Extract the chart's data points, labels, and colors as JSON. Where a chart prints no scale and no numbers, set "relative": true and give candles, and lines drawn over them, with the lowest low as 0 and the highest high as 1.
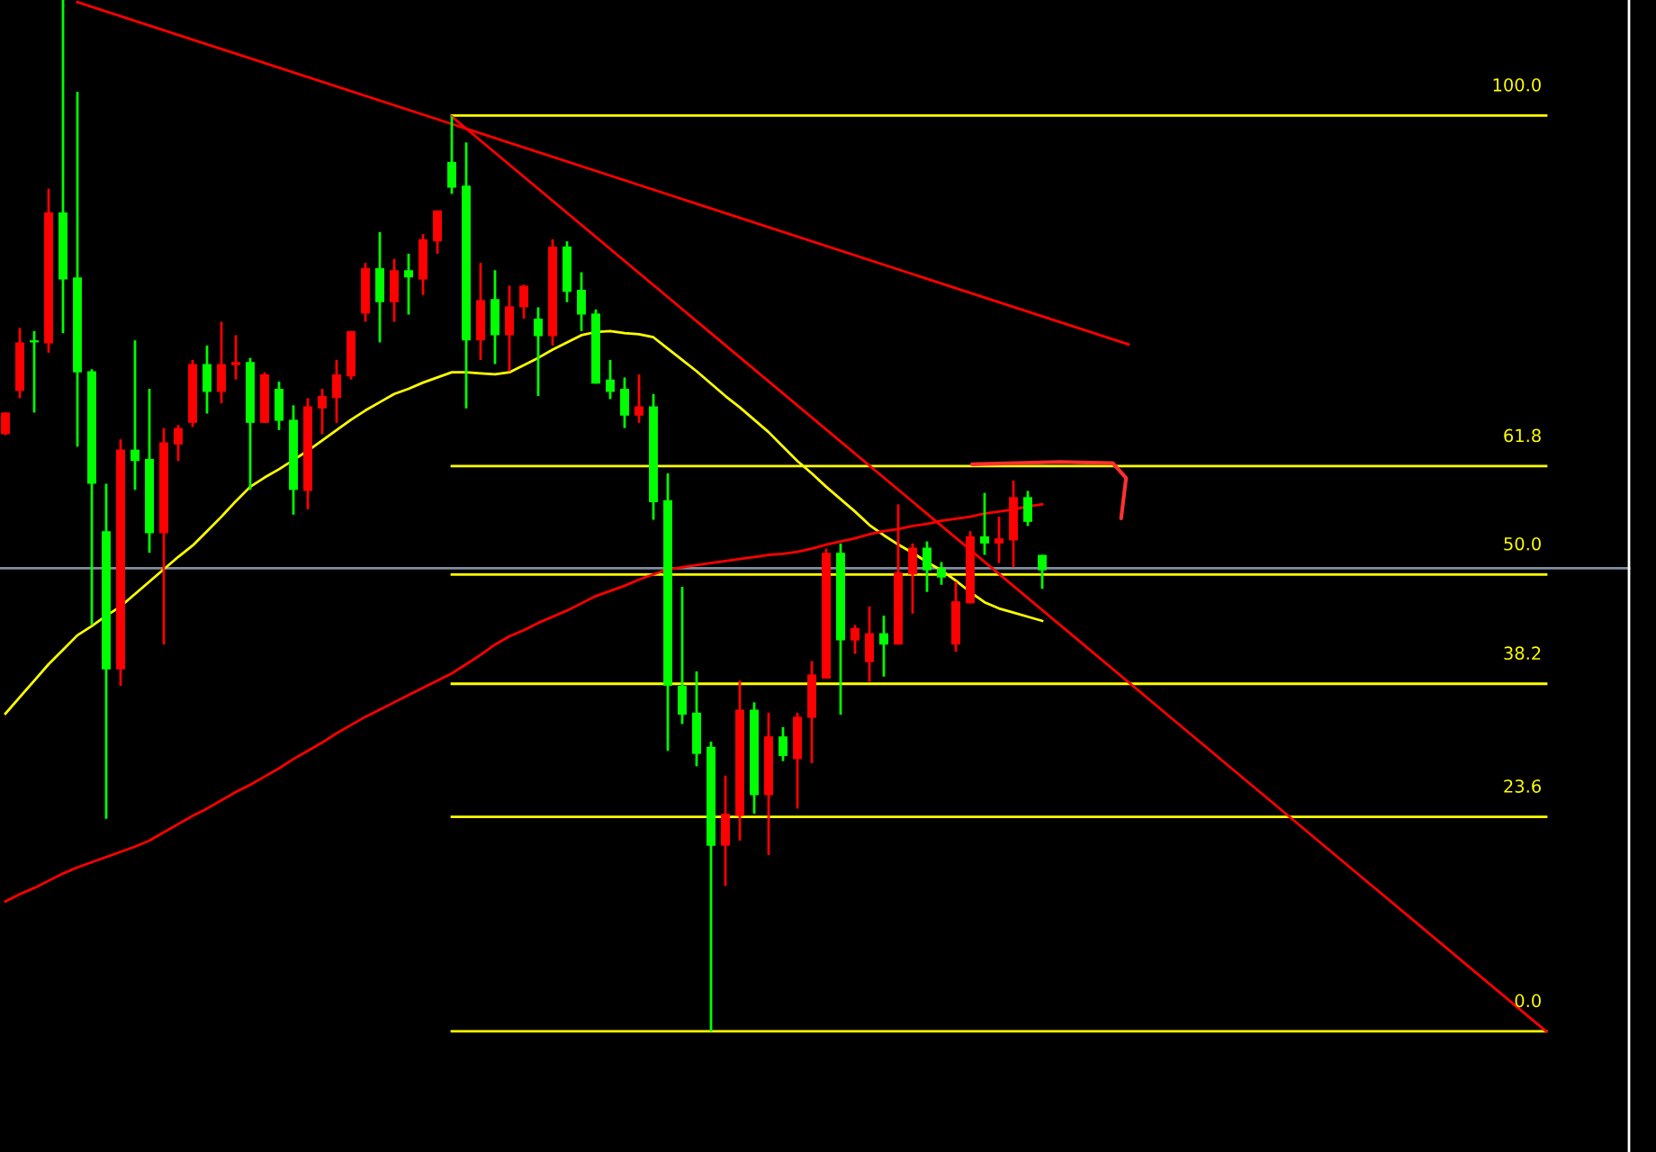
{
  "chart_data": {
    "type": "candlestick",
    "relative": true,
    "categories": [
      null,
      null,
      null,
      null,
      null,
      null,
      null,
      null,
      null,
      null,
      null,
      null,
      null,
      null,
      null,
      null,
      null,
      null,
      null,
      null,
      null,
      null,
      null,
      null,
      null,
      null,
      null,
      null,
      null,
      null,
      null,
      null,
      null,
      null,
      null,
      null,
      null,
      null,
      null,
      null,
      null,
      null,
      null,
      null,
      null,
      null,
      null,
      null,
      null,
      null,
      null,
      null,
      null,
      null,
      null,
      null,
      null,
      null,
      null,
      null,
      null,
      null,
      null,
      null,
      null,
      null,
      null,
      null,
      null,
      null,
      null,
      null,
      null,
      null,
      null,
      null,
      null,
      null,
      null,
      null,
      null,
      null,
      null,
      null,
      null,
      null,
      null,
      null,
      null,
      null,
      null,
      null,
      null,
      null,
      null,
      null,
      null,
      null,
      null,
      null,
      null,
      null,
      null,
      null,
      null,
      null,
      null,
      null
    ],
    "ohlc": [
      [
        0.579,
        0.6,
        0.578,
        0.6
      ],
      [
        0.621,
        0.682,
        0.614,
        0.668
      ],
      [
        0.668,
        0.679,
        0.6,
        0.668
      ],
      [
        0.667,
        0.817,
        0.658,
        0.794
      ],
      [
        0.794,
        1.0,
        0.677,
        0.729
      ],
      [
        0.731,
        0.911,
        0.567,
        0.639
      ],
      [
        0.64,
        0.642,
        0.394,
        0.531
      ],
      [
        0.485,
        0.531,
        0.206,
        0.351
      ],
      [
        0.351,
        0.574,
        0.335,
        0.564
      ],
      [
        0.564,
        0.67,
        0.525,
        0.553
      ],
      [
        0.555,
        0.623,
        0.464,
        0.483
      ],
      [
        0.483,
        0.585,
        0.375,
        0.571
      ],
      [
        0.569,
        0.588,
        0.553,
        0.585
      ],
      [
        0.59,
        0.651,
        0.586,
        0.647
      ],
      [
        0.647,
        0.665,
        0.599,
        0.62
      ],
      [
        0.62,
        0.688,
        0.609,
        0.647
      ],
      [
        0.646,
        0.675,
        0.632,
        0.649
      ],
      [
        0.649,
        0.653,
        0.525,
        0.59
      ],
      [
        0.59,
        0.639,
        0.59,
        0.637
      ],
      [
        0.623,
        0.63,
        0.583,
        0.592
      ],
      [
        0.593,
        0.607,
        0.501,
        0.525
      ],
      [
        0.524,
        0.614,
        0.506,
        0.606
      ],
      [
        0.604,
        0.623,
        0.579,
        0.616
      ],
      [
        0.614,
        0.651,
        0.59,
        0.637
      ],
      [
        0.635,
        0.679,
        0.632,
        0.679
      ],
      [
        0.696,
        0.745,
        0.688,
        0.74
      ],
      [
        0.74,
        0.775,
        0.668,
        0.707
      ],
      [
        0.707,
        0.749,
        0.688,
        0.738
      ],
      [
        0.738,
        0.754,
        0.695,
        0.731
      ],
      [
        0.729,
        0.773,
        0.714,
        0.768
      ],
      [
        0.766,
        0.796,
        0.754,
        0.796
      ],
      [
        0.843,
        0.887,
        0.812,
        0.818
      ],
      [
        0.82,
        0.862,
        0.604,
        0.67
      ],
      [
        0.67,
        0.745,
        0.651,
        0.709
      ],
      [
        0.71,
        0.738,
        0.647,
        0.675
      ],
      [
        0.675,
        0.723,
        0.64,
        0.703
      ],
      [
        0.702,
        0.724,
        0.691,
        0.723
      ],
      [
        0.691,
        0.702,
        0.616,
        0.674
      ],
      [
        0.674,
        0.768,
        0.665,
        0.761
      ],
      [
        0.761,
        0.766,
        0.707,
        0.717
      ],
      [
        0.719,
        0.736,
        0.679,
        0.695
      ],
      [
        0.696,
        0.7,
        0.628,
        0.628
      ],
      [
        0.632,
        0.651,
        0.613,
        0.62
      ],
      [
        0.623,
        0.634,
        0.585,
        0.597
      ],
      [
        0.597,
        0.637,
        0.59,
        0.606
      ],
      [
        0.606,
        0.618,
        0.496,
        0.513
      ],
      [
        0.515,
        0.541,
        0.272,
        0.335
      ],
      [
        0.335,
        0.431,
        0.298,
        0.307
      ],
      [
        0.309,
        0.349,
        0.257,
        0.269
      ],
      [
        0.276,
        0.281,
        0.0,
        0.18
      ],
      [
        0.18,
        0.248,
        0.141,
        0.211
      ],
      [
        0.209,
        0.34,
        0.185,
        0.312
      ],
      [
        0.312,
        0.319,
        0.211,
        0.229
      ],
      [
        0.229,
        0.309,
        0.171,
        0.286
      ],
      [
        0.286,
        0.295,
        0.262,
        0.267
      ],
      [
        0.264,
        0.309,
        0.216,
        0.305
      ],
      [
        0.304,
        0.359,
        0.26,
        0.346
      ],
      [
        0.342,
        0.468,
        0.342,
        0.464
      ],
      [
        0.464,
        0.473,
        0.307,
        0.379
      ],
      [
        0.379,
        0.394,
        0.366,
        0.391
      ],
      [
        0.358,
        0.412,
        0.339,
        0.386
      ],
      [
        0.386,
        0.403,
        0.344,
        0.375
      ],
      [
        0.375,
        0.511,
        0.375,
        0.445
      ],
      [
        0.443,
        0.473,
        0.405,
        0.469
      ],
      [
        0.469,
        0.475,
        0.426,
        0.447
      ],
      [
        0.449,
        0.455,
        0.433,
        0.44
      ],
      [
        0.375,
        0.436,
        0.368,
        0.417
      ],
      [
        0.415,
        0.485,
        0.415,
        0.48
      ],
      [
        0.48,
        0.522,
        0.462,
        0.473
      ],
      [
        0.473,
        0.499,
        0.454,
        0.478
      ],
      [
        0.476,
        0.534,
        0.45,
        0.518
      ],
      [
        0.518,
        0.524,
        0.49,
        0.494
      ],
      [
        0.462,
        0.462,
        0.429,
        0.447
      ],
      null,
      null,
      null,
      null,
      null,
      null,
      null,
      null,
      null,
      null,
      null,
      null,
      null,
      null,
      null,
      null,
      null,
      null,
      null,
      null,
      null,
      null,
      null,
      null,
      null,
      null,
      null,
      null,
      null,
      null,
      null,
      null,
      null,
      null,
      null
    ],
    "colors": [
      "#ff0000",
      "#ff0000",
      "#00ff00",
      "#ff0000",
      "#00ff00",
      "#00ff00",
      "#00ff00",
      "#00ff00",
      "#ff0000",
      "#00ff00",
      "#00ff00",
      "#ff0000",
      "#ff0000",
      "#ff0000",
      "#00ff00",
      "#ff0000",
      "#ff0000",
      "#00ff00",
      "#ff0000",
      "#00ff00",
      "#00ff00",
      "#ff0000",
      "#ff0000",
      "#ff0000",
      "#ff0000",
      "#ff0000",
      "#00ff00",
      "#ff0000",
      "#00ff00",
      "#ff0000",
      "#ff0000",
      "#00ff00",
      "#00ff00",
      "#ff0000",
      "#00ff00",
      "#ff0000",
      "#ff0000",
      "#00ff00",
      "#ff0000",
      "#00ff00",
      "#00ff00",
      "#00ff00",
      "#00ff00",
      "#00ff00",
      "#ff0000",
      "#00ff00",
      "#00ff00",
      "#00ff00",
      "#00ff00",
      "#00ff00",
      "#ff0000",
      "#ff0000",
      "#00ff00",
      "#ff0000",
      "#00ff00",
      "#ff0000",
      "#ff0000",
      "#ff0000",
      "#00ff00",
      "#ff0000",
      "#ff0000",
      "#00ff00",
      "#ff0000",
      "#ff0000",
      "#00ff00",
      "#00ff00",
      "#ff0000",
      "#ff0000",
      "#00ff00",
      "#ff0000",
      "#ff0000",
      "#00ff00",
      "#00ff00",
      null,
      null,
      null,
      null,
      null,
      null,
      null,
      null,
      null,
      null,
      null,
      null,
      null,
      null,
      null,
      null,
      null,
      null,
      null,
      null,
      null,
      null,
      null,
      null,
      null,
      null,
      null,
      null,
      null,
      null,
      null,
      null,
      null,
      null,
      null
    ],
    "series": [
      {
        "type": "line",
        "color": "#ffff00",
        "values": [
          0.308,
          0.324,
          0.34,
          0.356,
          0.37,
          0.384,
          0.393,
          0.403,
          0.412,
          0.424,
          0.436,
          0.448,
          0.46,
          0.471,
          0.485,
          0.499,
          0.514,
          0.528,
          0.537,
          0.545,
          0.554,
          0.563,
          0.573,
          0.583,
          0.593,
          0.602,
          0.61,
          0.618,
          0.623,
          0.629,
          0.634,
          0.639,
          0.639,
          0.638,
          0.637,
          0.639,
          0.646,
          0.653,
          0.661,
          0.668,
          0.675,
          0.678,
          0.679,
          0.677,
          0.676,
          0.673,
          0.662,
          0.651,
          0.64,
          0.628,
          0.616,
          0.605,
          0.593,
          0.581,
          0.567,
          0.553,
          0.541,
          0.528,
          0.516,
          0.504,
          0.491,
          0.481,
          0.472,
          0.464,
          0.455,
          0.447,
          0.437,
          0.426,
          0.416,
          0.41,
          0.406,
          0.402,
          0.398,
          null,
          null,
          null,
          null,
          null,
          null,
          null,
          null,
          null,
          null,
          null,
          null,
          null,
          null,
          null,
          null,
          null,
          null,
          null,
          null,
          null,
          null,
          null,
          null,
          null,
          null,
          null,
          null,
          null,
          null,
          null,
          null,
          null,
          null,
          null
        ]
      },
      {
        "type": "line",
        "color": "#ff0000",
        "values": [
          0.126,
          0.133,
          0.139,
          0.146,
          0.153,
          0.159,
          0.164,
          0.169,
          0.174,
          0.179,
          0.185,
          0.193,
          0.201,
          0.209,
          0.216,
          0.224,
          0.232,
          0.239,
          0.247,
          0.255,
          0.264,
          0.272,
          0.28,
          0.289,
          0.297,
          0.305,
          0.312,
          0.319,
          0.326,
          0.333,
          0.34,
          0.347,
          0.356,
          0.365,
          0.375,
          0.383,
          0.389,
          0.396,
          0.402,
          0.408,
          0.415,
          0.422,
          0.427,
          0.432,
          0.438,
          0.443,
          0.448,
          0.45,
          0.452,
          0.454,
          0.456,
          0.458,
          0.46,
          0.462,
          0.463,
          0.465,
          0.468,
          0.472,
          0.475,
          0.478,
          0.482,
          0.485,
          0.487,
          0.49,
          0.492,
          0.495,
          0.497,
          0.499,
          0.502,
          0.504,
          0.506,
          0.509,
          0.511,
          null,
          null,
          null,
          null,
          null,
          null,
          null,
          null,
          null,
          null,
          null,
          null,
          null,
          null,
          null,
          null,
          null,
          null,
          null,
          null,
          null,
          null,
          null,
          null,
          null,
          null,
          null,
          null,
          null,
          null,
          null,
          null,
          null,
          null,
          null
        ]
      },
      {
        "type": "line",
        "color": "#ff0000",
        "values": [
          null,
          null,
          null,
          null,
          null,
          0.998,
          null,
          null,
          null,
          null,
          null,
          null,
          null,
          null,
          null,
          null,
          null,
          null,
          null,
          null,
          null,
          null,
          null,
          null,
          null,
          null,
          null,
          null,
          null,
          null,
          null,
          null,
          null,
          null,
          null,
          null,
          null,
          null,
          null,
          null,
          null,
          null,
          null,
          null,
          null,
          null,
          null,
          null,
          null,
          null,
          null,
          null,
          null,
          null,
          null,
          null,
          null,
          null,
          null,
          null,
          null,
          null,
          null,
          null,
          null,
          null,
          null,
          null,
          null,
          null,
          null,
          null,
          null,
          null,
          null,
          null,
          null,
          null,
          0.666,
          null,
          null,
          null,
          null,
          null,
          null,
          null,
          null,
          null,
          null,
          null,
          null,
          null,
          null,
          null,
          null,
          null,
          null,
          null,
          null,
          null,
          null,
          null,
          null,
          null,
          null,
          null,
          null,
          null
        ]
      },
      {
        "type": "line",
        "color": "#ff0000",
        "values": [
          null,
          null,
          null,
          null,
          null,
          null,
          null,
          null,
          null,
          null,
          null,
          null,
          null,
          null,
          null,
          null,
          null,
          null,
          null,
          null,
          null,
          null,
          null,
          null,
          null,
          null,
          null,
          null,
          null,
          null,
          null,
          0.887,
          null,
          null,
          null,
          null,
          null,
          null,
          null,
          null,
          null,
          null,
          null,
          null,
          null,
          null,
          null,
          null,
          null,
          null,
          null,
          null,
          null,
          null,
          null,
          null,
          null,
          null,
          null,
          null,
          null,
          null,
          null,
          null,
          null,
          null,
          null,
          null,
          null,
          null,
          null,
          null,
          null,
          null,
          null,
          null,
          null,
          null,
          null,
          null,
          null,
          null,
          null,
          null,
          null,
          null,
          null,
          null,
          null,
          null,
          null,
          null,
          null,
          null,
          null,
          null,
          null,
          null,
          null,
          null,
          null,
          null,
          null,
          null,
          null,
          null,
          null,
          0.0
        ]
      }
    ],
    "ref_lines": [
      {
        "axis": "y",
        "value": 0.888,
        "color": "#ffff00"
      },
      {
        "axis": "y",
        "value": 0.548,
        "color": "#ffff00"
      },
      {
        "axis": "y",
        "value": 0.443,
        "color": "#ffff00"
      },
      {
        "axis": "y",
        "value": 0.337,
        "color": "#ffff00"
      },
      {
        "axis": "y",
        "value": 0.208,
        "color": "#ffff00"
      },
      {
        "axis": "y",
        "value": 0.0,
        "color": "#ffff00"
      },
      {
        "axis": "y",
        "value": 0.449,
        "color": "#7f8fa0",
        "line_style": "solid"
      }
    ],
    "annotations": [
      {
        "text": "100.0",
        "y": 0.888
      },
      {
        "text": "61.8",
        "y": 0.548
      },
      {
        "text": "50.0",
        "y": 0.443
      },
      {
        "text": "38.2",
        "y": 0.337
      },
      {
        "text": "23.6",
        "y": 0.208
      },
      {
        "text": "0.0",
        "y": 0.0
      }
    ]
  }
}
